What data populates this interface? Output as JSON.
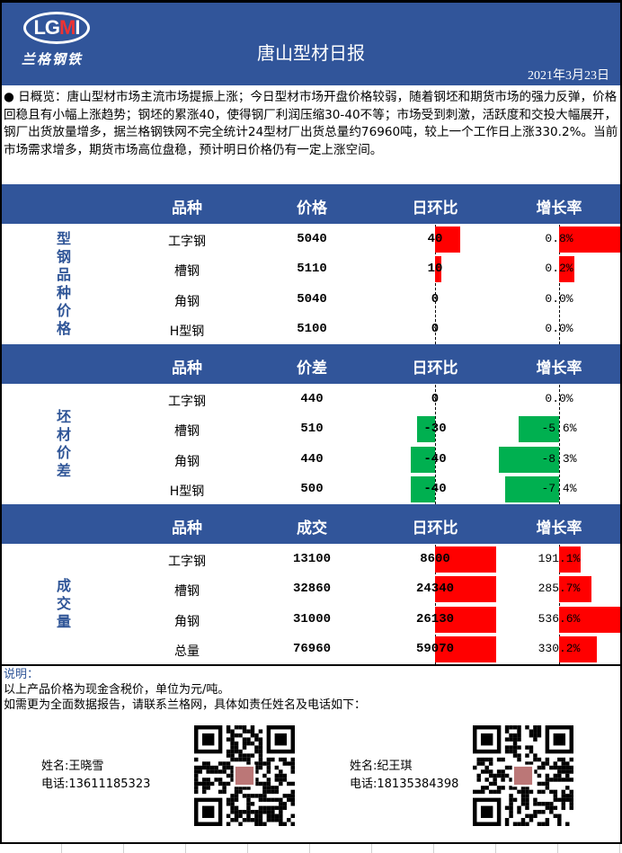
{
  "header": {
    "logo_text": "LGMI",
    "logo_cn": "兰格钢铁",
    "title": "唐山型材日报",
    "date": "2021年3月23日"
  },
  "overview": "● 日概览：唐山型材市场主流市场提振上涨；今日型材市场开盘价格较弱，随着钢坯和期货市场的强力反弹，价格回稳且有小幅上涨趋势；钢坯的累涨40，使得钢厂利润压缩30-40不等；市场受到刺激，活跃度和交投大幅展开，钢厂出货放量增多，据兰格钢铁网不完全统计24型材厂出货总量约76960吨，较上一个工作日上涨330.2%。当前市场需求增多，期货市场高位盘稳，预计明日价格仍有一定上涨空间。",
  "colors": {
    "header_bg": "#31559A",
    "up_bar": "#FF0000",
    "down_bar": "#00B050",
    "category_text": "#2F5597"
  },
  "sections": [
    {
      "category": "型钢品种价格",
      "headers": [
        "品种",
        "价格",
        "日环比",
        "增长率"
      ],
      "rows": [
        {
          "name": "工字钢",
          "value": "5040",
          "change": 40,
          "change_label": "40",
          "rate": 0.8,
          "rate_label": "0.8%"
        },
        {
          "name": "槽钢",
          "value": "5110",
          "change": 10,
          "change_label": "10",
          "rate": 0.2,
          "rate_label": "0.2%"
        },
        {
          "name": "角钢",
          "value": "5040",
          "change": 0,
          "change_label": "0",
          "rate": 0,
          "rate_label": "0.0%"
        },
        {
          "name": "H型钢",
          "value": "5100",
          "change": 0,
          "change_label": "0",
          "rate": 0,
          "rate_label": "0.0%"
        }
      ]
    },
    {
      "category": "坯材价差",
      "headers": [
        "品种",
        "价差",
        "日环比",
        "增长率"
      ],
      "rows": [
        {
          "name": "工字钢",
          "value": "440",
          "change": 0,
          "change_label": "0",
          "rate": 0,
          "rate_label": "0.0%"
        },
        {
          "name": "槽钢",
          "value": "510",
          "change": -30,
          "change_label": "-30",
          "rate": -5.6,
          "rate_label": "-5.6%"
        },
        {
          "name": "角钢",
          "value": "440",
          "change": -40,
          "change_label": "-40",
          "rate": -8.3,
          "rate_label": "-8.3%"
        },
        {
          "name": "H型钢",
          "value": "500",
          "change": -40,
          "change_label": "-40",
          "rate": -7.4,
          "rate_label": "-7.4%"
        }
      ]
    },
    {
      "category": "成交量",
      "headers": [
        "品种",
        "成交",
        "日环比",
        "增长率"
      ],
      "rows": [
        {
          "name": "工字钢",
          "value": "13100",
          "change": 8600,
          "change_label": "8600",
          "rate": 191.1,
          "rate_label": "191.1%"
        },
        {
          "name": "槽钢",
          "value": "32860",
          "change": 24340,
          "change_label": "24340",
          "rate": 285.7,
          "rate_label": "285.7%"
        },
        {
          "name": "角钢",
          "value": "31000",
          "change": 26130,
          "change_label": "26130",
          "rate": 536.6,
          "rate_label": "536.6%"
        },
        {
          "name": "总量",
          "value": "76960",
          "change": 59070,
          "change_label": "59070",
          "rate": 330.2,
          "rate_label": "330.2%"
        }
      ]
    }
  ],
  "footer": {
    "note_title": "说明：",
    "note_lines": [
      "以上产品价格为现金含税价，单位为元/吨。",
      "如需更为全面数据报告，请联系兰格网，具体如责任姓名及电话如下："
    ],
    "contacts": [
      {
        "name": "姓名:王晓雪",
        "phone": "电话:13611185323",
        "qr_icon": "qr-code-icon"
      },
      {
        "name": "姓名:纪王琪",
        "phone": "电话:18135384398",
        "qr_icon": "qr-code-icon"
      }
    ]
  }
}
